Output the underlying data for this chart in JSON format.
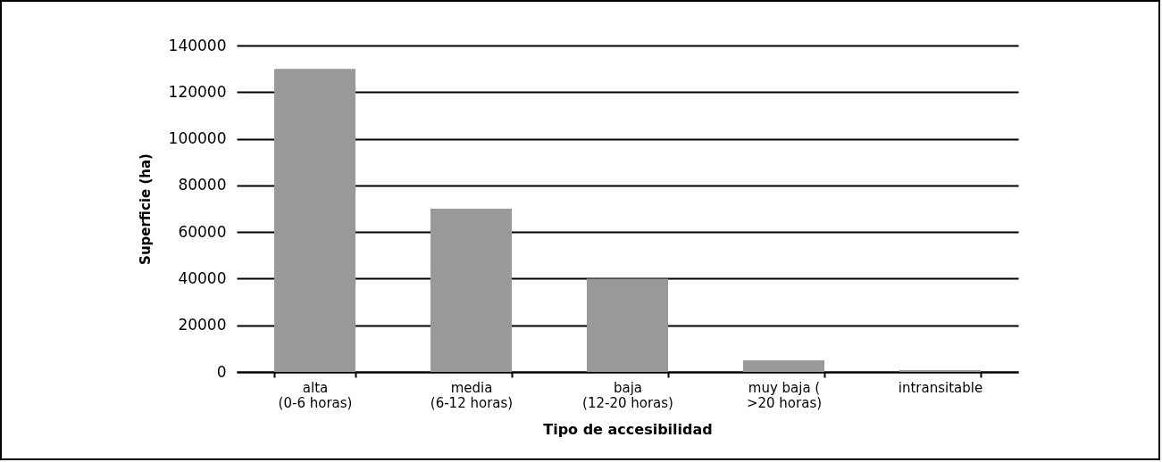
{
  "chart_data": {
    "type": "bar",
    "xlabel": "Tipo de accesibilidad",
    "ylabel": "Superficie (ha)",
    "categories": [
      "alta\n(0-6 horas)",
      "media\n(6-12 horas)",
      "baja\n(12-20 horas)",
      "muy baja (\n>20 horas)",
      "intransitable"
    ],
    "values": [
      130000,
      70000,
      40000,
      5000,
      800
    ],
    "color": "#999999",
    "ylim": [
      0,
      140000
    ],
    "yticks": [
      0,
      20000,
      40000,
      60000,
      80000,
      100000,
      120000,
      140000
    ],
    "grid": "y"
  }
}
